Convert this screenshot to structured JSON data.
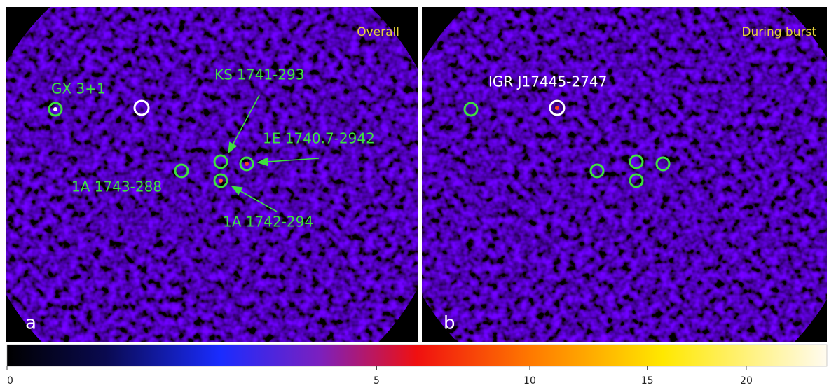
{
  "panels": [
    {
      "letter": "a",
      "label": "Overall",
      "annotations": [
        "GX 3+1",
        "KS 1741-293",
        "1E 1740.7-2942",
        "1A 1743-288",
        "1A 1742-294"
      ]
    },
    {
      "letter": "b",
      "label": "During burst",
      "annotations": [
        "IGR J17445-2747"
      ]
    }
  ],
  "colorbar": {
    "scale": "sqrt",
    "lim": [
      0,
      24.6
    ],
    "ticks": [
      0,
      5,
      10,
      15,
      20
    ]
  }
}
